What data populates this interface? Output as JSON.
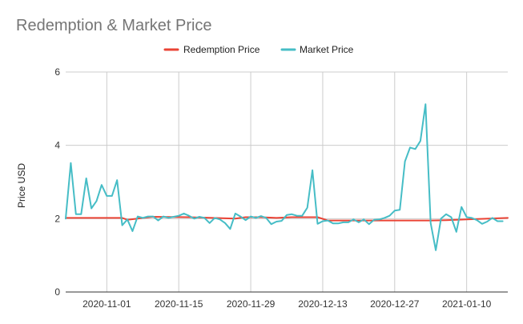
{
  "chart_data": {
    "type": "line",
    "title": "Redemption & Market Price",
    "xlabel": "",
    "ylabel": "Price USD",
    "ylim": [
      0,
      6
    ],
    "yticks": [
      "0",
      "2",
      "4",
      "6"
    ],
    "x_start": "2020-10-24",
    "x_end": "2021-01-18",
    "x_ticks": [
      "2020-11-01",
      "2020-11-15",
      "2020-11-29",
      "2020-12-13",
      "2020-12-27",
      "2021-01-10"
    ],
    "grid": true,
    "legend": "top",
    "series": [
      {
        "name": "Redemption Price",
        "color": "#ea4335",
        "points": [
          [
            "2020-10-24",
            2.02
          ],
          [
            "2020-11-02",
            2.02
          ],
          [
            "2020-11-04",
            2.02
          ],
          [
            "2020-11-05",
            1.97
          ],
          [
            "2020-11-10",
            2.05
          ],
          [
            "2020-11-17",
            2.04
          ],
          [
            "2020-11-26",
            2.0
          ],
          [
            "2020-11-28",
            2.04
          ],
          [
            "2020-12-01",
            2.04
          ],
          [
            "2020-12-04",
            2.02
          ],
          [
            "2020-12-07",
            2.04
          ],
          [
            "2020-12-12",
            2.04
          ],
          [
            "2020-12-14",
            1.95
          ],
          [
            "2020-12-20",
            1.95
          ],
          [
            "2021-01-03",
            1.95
          ],
          [
            "2021-01-06",
            1.96
          ],
          [
            "2021-01-10",
            1.98
          ],
          [
            "2021-01-18",
            2.02
          ]
        ]
      },
      {
        "name": "Market Price",
        "color": "#46bdc6",
        "points": [
          [
            "2020-10-24",
            2.0
          ],
          [
            "2020-10-25",
            3.52
          ],
          [
            "2020-10-26",
            2.12
          ],
          [
            "2020-10-27",
            2.12
          ],
          [
            "2020-10-28",
            3.1
          ],
          [
            "2020-10-29",
            2.28
          ],
          [
            "2020-10-30",
            2.48
          ],
          [
            "2020-10-31",
            2.92
          ],
          [
            "2020-11-01",
            2.62
          ],
          [
            "2020-11-02",
            2.62
          ],
          [
            "2020-11-03",
            3.05
          ],
          [
            "2020-11-04",
            1.82
          ],
          [
            "2020-11-05",
            1.98
          ],
          [
            "2020-11-06",
            1.66
          ],
          [
            "2020-11-07",
            2.06
          ],
          [
            "2020-11-08",
            2.02
          ],
          [
            "2020-11-09",
            2.06
          ],
          [
            "2020-11-10",
            2.06
          ],
          [
            "2020-11-11",
            1.95
          ],
          [
            "2020-11-12",
            2.06
          ],
          [
            "2020-11-13",
            2.02
          ],
          [
            "2020-11-14",
            2.05
          ],
          [
            "2020-11-15",
            2.08
          ],
          [
            "2020-11-16",
            2.14
          ],
          [
            "2020-11-17",
            2.08
          ],
          [
            "2020-11-18",
            2.0
          ],
          [
            "2020-11-19",
            2.05
          ],
          [
            "2020-11-20",
            2.02
          ],
          [
            "2020-11-21",
            1.88
          ],
          [
            "2020-11-22",
            2.02
          ],
          [
            "2020-11-23",
            1.98
          ],
          [
            "2020-11-24",
            1.88
          ],
          [
            "2020-11-25",
            1.72
          ],
          [
            "2020-11-26",
            2.14
          ],
          [
            "2020-11-27",
            2.06
          ],
          [
            "2020-11-28",
            1.96
          ],
          [
            "2020-11-29",
            2.06
          ],
          [
            "2020-11-30",
            2.02
          ],
          [
            "2020-12-01",
            2.07
          ],
          [
            "2020-12-02",
            2.02
          ],
          [
            "2020-12-03",
            1.85
          ],
          [
            "2020-12-04",
            1.92
          ],
          [
            "2020-12-05",
            1.94
          ],
          [
            "2020-12-06",
            2.1
          ],
          [
            "2020-12-07",
            2.12
          ],
          [
            "2020-12-08",
            2.08
          ],
          [
            "2020-12-09",
            2.08
          ],
          [
            "2020-12-10",
            2.3
          ],
          [
            "2020-12-11",
            3.32
          ],
          [
            "2020-12-12",
            1.86
          ],
          [
            "2020-12-13",
            1.93
          ],
          [
            "2020-12-14",
            1.95
          ],
          [
            "2020-12-15",
            1.87
          ],
          [
            "2020-12-16",
            1.87
          ],
          [
            "2020-12-17",
            1.9
          ],
          [
            "2020-12-18",
            1.9
          ],
          [
            "2020-12-19",
            1.98
          ],
          [
            "2020-12-20",
            1.9
          ],
          [
            "2020-12-21",
            1.98
          ],
          [
            "2020-12-22",
            1.85
          ],
          [
            "2020-12-23",
            1.97
          ],
          [
            "2020-12-24",
            1.98
          ],
          [
            "2020-12-25",
            2.02
          ],
          [
            "2020-12-26",
            2.08
          ],
          [
            "2020-12-27",
            2.22
          ],
          [
            "2020-12-28",
            2.24
          ],
          [
            "2020-12-29",
            3.56
          ],
          [
            "2020-12-30",
            3.94
          ],
          [
            "2020-12-31",
            3.9
          ],
          [
            "2021-01-01",
            4.12
          ],
          [
            "2021-01-02",
            5.12
          ],
          [
            "2021-01-03",
            1.88
          ],
          [
            "2021-01-04",
            1.14
          ],
          [
            "2021-01-05",
            2.0
          ],
          [
            "2021-01-06",
            2.12
          ],
          [
            "2021-01-07",
            2.04
          ],
          [
            "2021-01-08",
            1.64
          ],
          [
            "2021-01-09",
            2.32
          ],
          [
            "2021-01-10",
            2.04
          ],
          [
            "2021-01-11",
            2.02
          ],
          [
            "2021-01-12",
            1.96
          ],
          [
            "2021-01-13",
            1.86
          ],
          [
            "2021-01-14",
            1.92
          ],
          [
            "2021-01-15",
            2.02
          ],
          [
            "2021-01-16",
            1.93
          ],
          [
            "2021-01-17",
            1.93
          ]
        ]
      }
    ]
  }
}
